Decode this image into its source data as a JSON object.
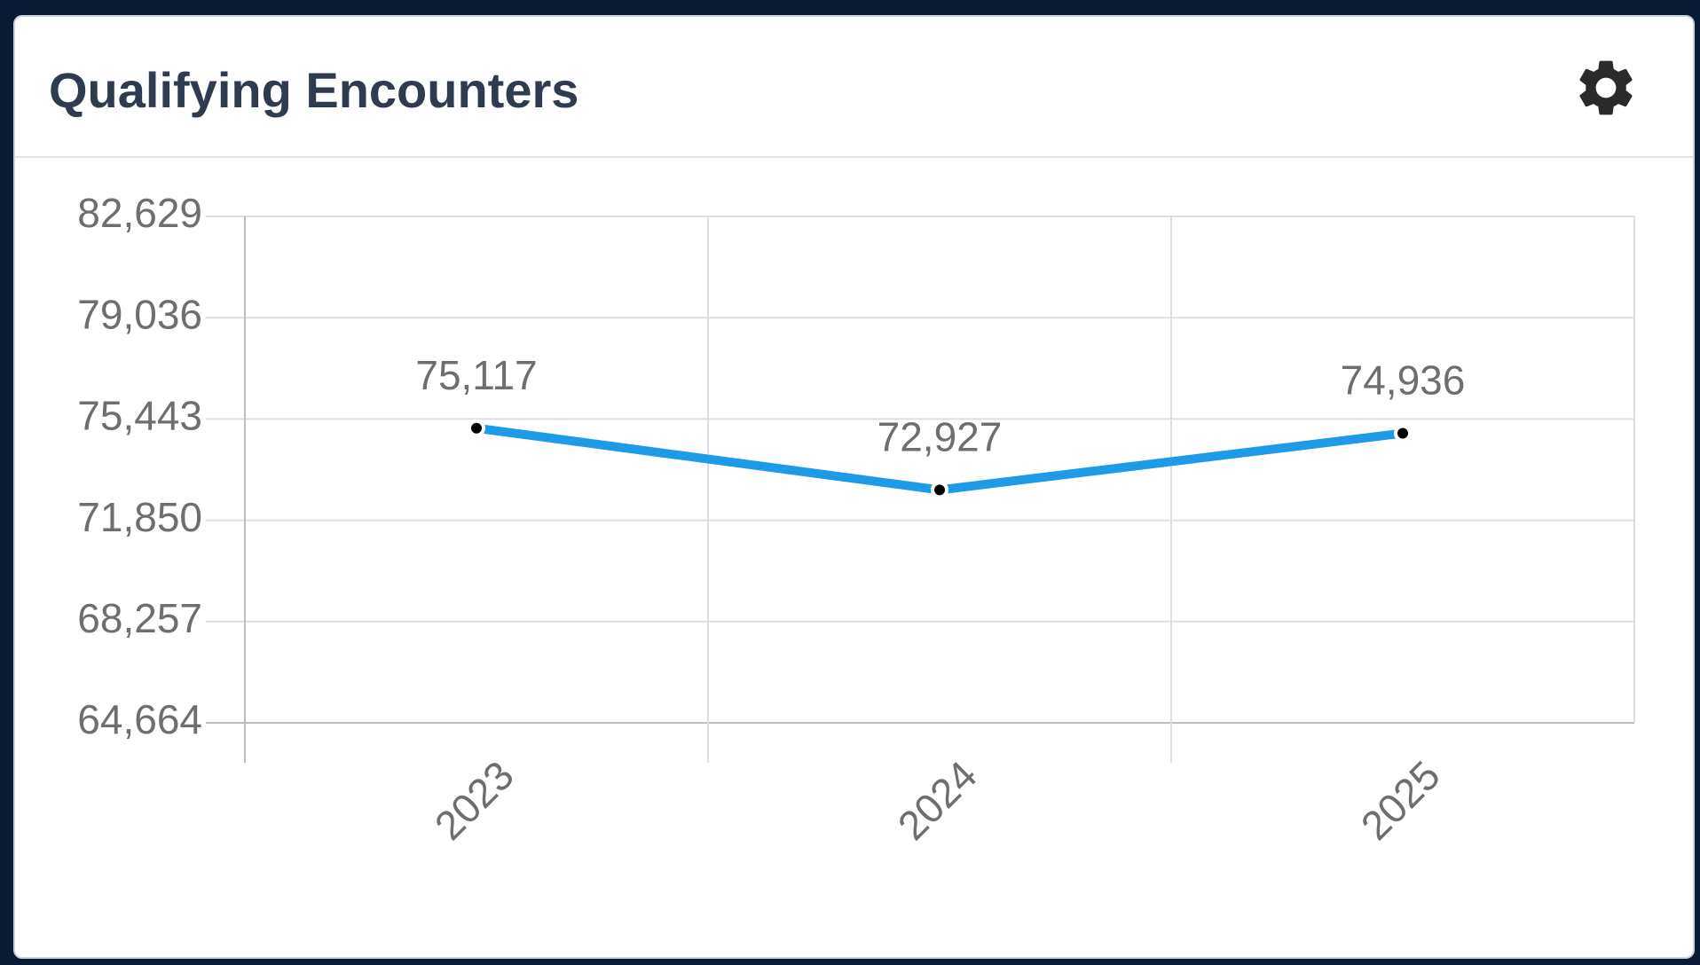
{
  "title": "Qualifying Encounters",
  "chart_data": {
    "type": "line",
    "categories": [
      "2023",
      "2024",
      "2025"
    ],
    "values": [
      75117,
      72927,
      74936
    ],
    "value_labels": [
      "75,117",
      "72,927",
      "74,936"
    ],
    "color": "#1e9be8",
    "ylim": [
      64664,
      82629
    ],
    "yticks": [
      {
        "value": 64664,
        "label": "64,664"
      },
      {
        "value": 68257,
        "label": "68,257"
      },
      {
        "value": 71850,
        "label": "71,850"
      },
      {
        "value": 75443,
        "label": "75,443"
      },
      {
        "value": 79036,
        "label": "79,036"
      },
      {
        "value": 82629,
        "label": "82,629"
      }
    ],
    "grid": true
  }
}
